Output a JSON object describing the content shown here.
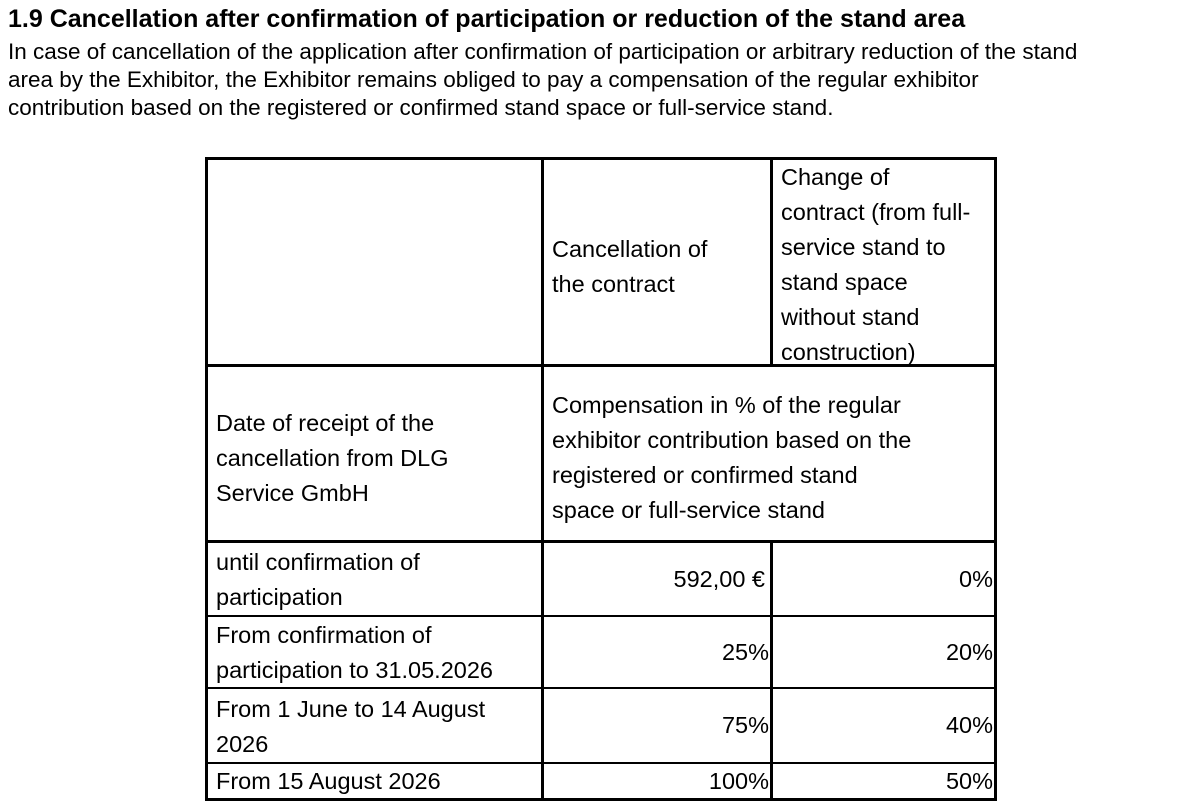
{
  "section": {
    "title": "1.9 Cancellation after confirmation of participation or reduction of the stand area",
    "intro_lines": [
      "In case of cancellation of the application after confirmation of participation or arbitrary reduction of the stand",
      "area by the Exhibitor, the Exhibitor remains obliged to pay a compensation of the regular exhibitor",
      "contribution based on the registered or confirmed stand space or full-service stand."
    ]
  },
  "table": {
    "header": {
      "col2_lines": [
        "Cancellation of",
        "the contract"
      ],
      "col3_lines": [
        "Change of",
        "contract (from full-",
        "service stand to",
        "stand space",
        "without stand",
        "construction)"
      ]
    },
    "subheader": {
      "col1_lines": [
        "Date of receipt of the",
        "cancellation from DLG",
        "Service GmbH"
      ],
      "col23_lines": [
        "Compensation in % of the regular",
        "exhibitor contribution based on the",
        "registered or confirmed stand",
        "space or full-service stand"
      ]
    },
    "rows": [
      {
        "period_lines": [
          "until confirmation of",
          "participation"
        ],
        "cancellation": "592,00 €",
        "change": "0%"
      },
      {
        "period_lines": [
          "From confirmation of",
          "participation to 31.05.2026"
        ],
        "cancellation": "25%",
        "change": "20%"
      },
      {
        "period_lines": [
          "From 1 June to 14 August",
          "2026"
        ],
        "cancellation": "75%",
        "change": "40%"
      },
      {
        "period_lines": [
          "From 15 August 2026"
        ],
        "cancellation": "100%",
        "change": "50%"
      }
    ]
  }
}
